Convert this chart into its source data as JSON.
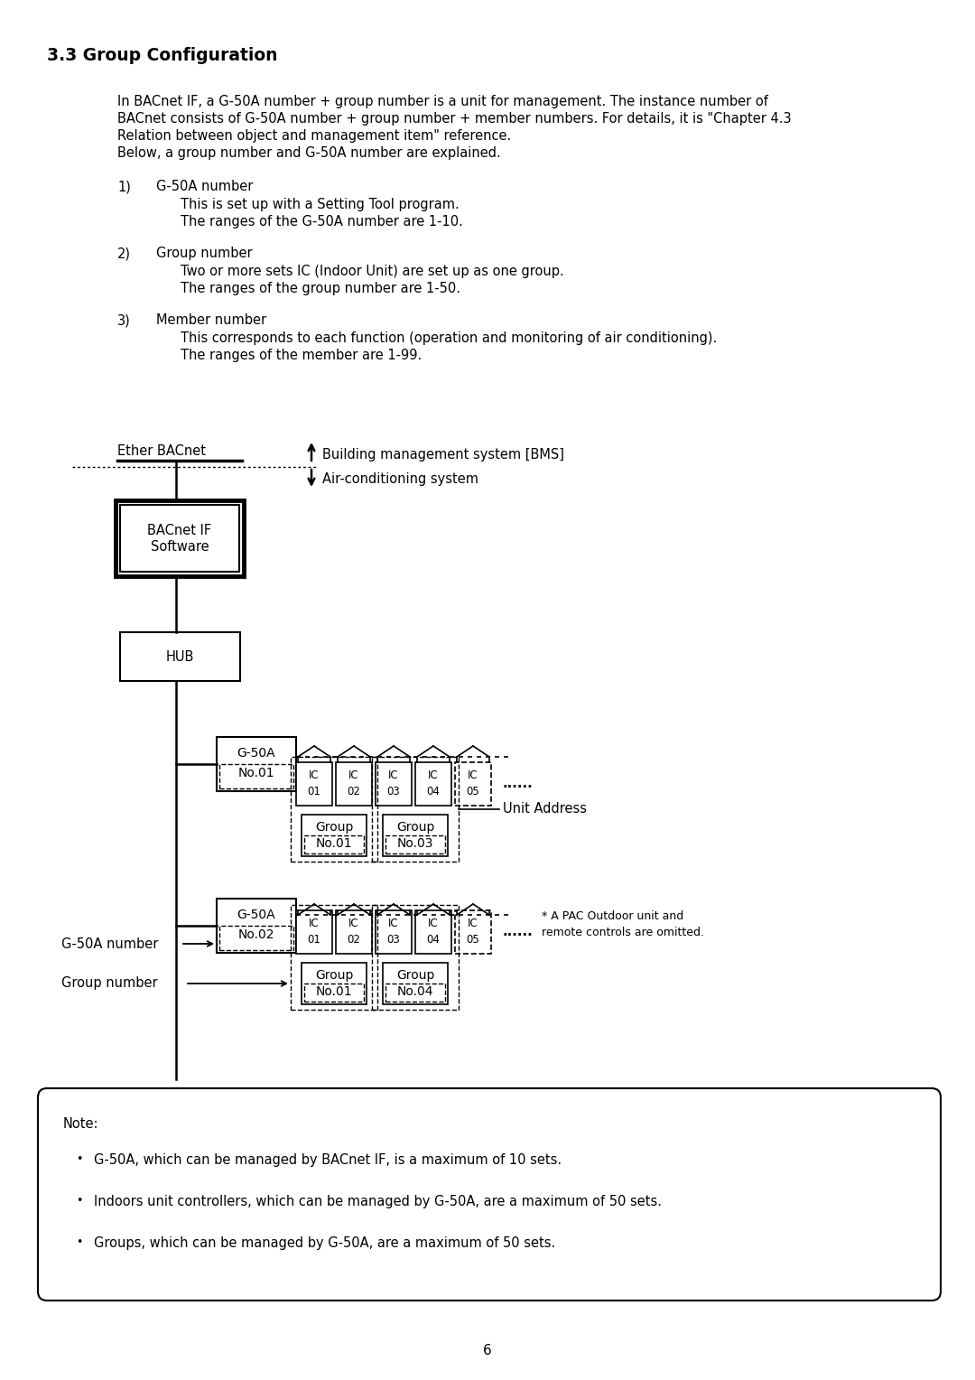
{
  "title": "3.3 Group Configuration",
  "background_color": "#ffffff",
  "text_color": "#000000",
  "page_number": "6",
  "intro_text": [
    "In BACnet IF, a G-50A number + group number is a unit for management. The instance number of",
    "BACnet consists of G-50A number + group number + member numbers. For details, it is \"Chapter 4.3",
    "Relation between object and management item\" reference.",
    "Below, a group number and G-50A number are explained."
  ],
  "items": [
    {
      "num": "1)",
      "title": "G-50A number",
      "lines": [
        "This is set up with a Setting Tool program.",
        "The ranges of the G-50A number are 1-10."
      ]
    },
    {
      "num": "2)",
      "title": "Group number",
      "lines": [
        "Two or more sets IC (Indoor Unit) are set up as one group.",
        "The ranges of the group number are 1-50."
      ]
    },
    {
      "num": "3)",
      "title": "Member number",
      "lines": [
        "This corresponds to each function (operation and monitoring of air conditioning).",
        "The ranges of the member are 1-99."
      ]
    }
  ],
  "note_text": [
    "G-50A, which can be managed by BACnet IF, is a maximum of 10 sets.",
    "Indoors unit controllers, which can be managed by G-50A, are a maximum of 50 sets.",
    "Groups, which can be managed by G-50A, are a maximum of 50 sets."
  ]
}
